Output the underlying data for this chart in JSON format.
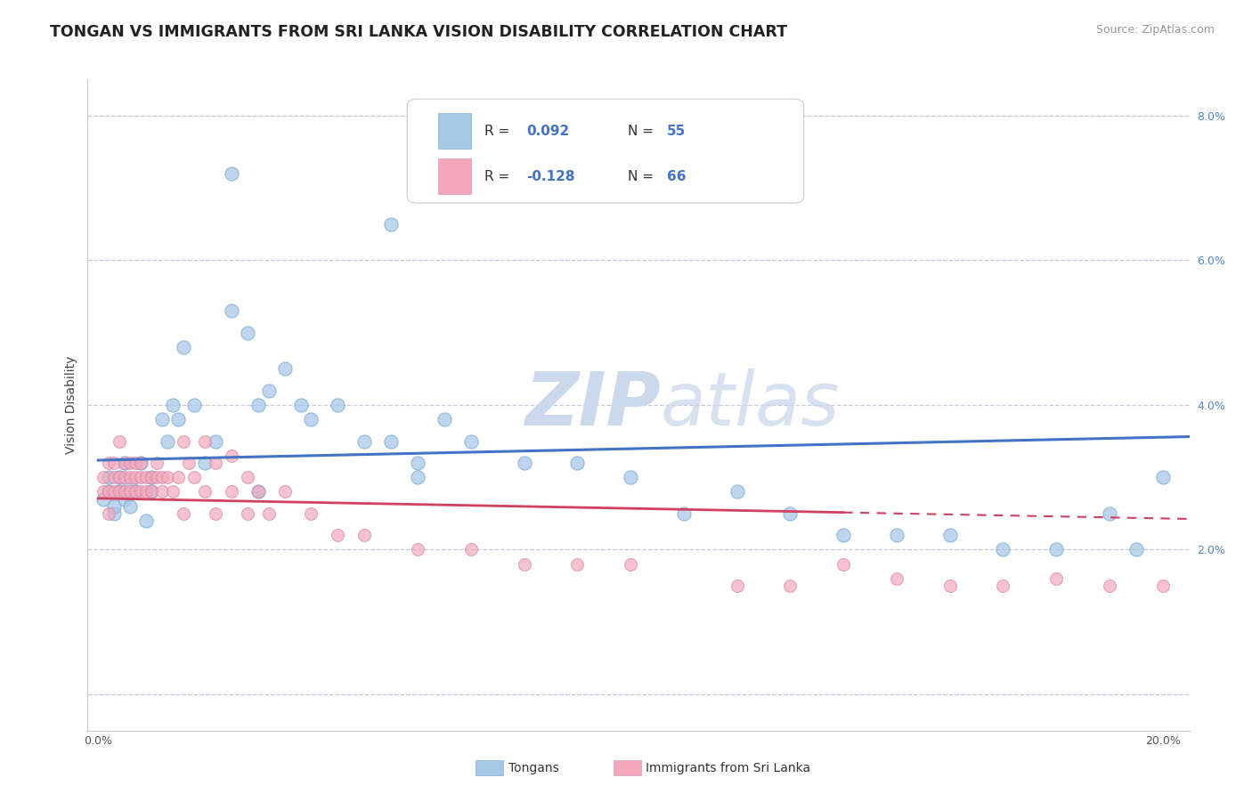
{
  "title": "TONGAN VS IMMIGRANTS FROM SRI LANKA VISION DISABILITY CORRELATION CHART",
  "source_text": "Source: ZipAtlas.com",
  "xlabel": "",
  "ylabel": "Vision Disability",
  "xlim": [
    -0.002,
    0.205
  ],
  "ylim": [
    -0.005,
    0.085
  ],
  "xtick_vals": [
    0.0,
    0.04,
    0.08,
    0.12,
    0.16,
    0.2
  ],
  "xticklabels": [
    "0.0%",
    "",
    "",
    "",
    "",
    "20.0%"
  ],
  "ytick_vals": [
    0.0,
    0.02,
    0.04,
    0.06,
    0.08
  ],
  "yticklabels_right": [
    "",
    "2.0%",
    "4.0%",
    "6.0%",
    "8.0%"
  ],
  "legend_r1": "R = 0.092",
  "legend_n1": "N = 55",
  "legend_r2": "R = -0.128",
  "legend_n2": "N = 66",
  "color_tongan": "#a8c8e8",
  "color_sri_lanka": "#f4a8bc",
  "color_line_tongan": "#4472c4",
  "color_line_sri_lanka": "#d04060",
  "background_color": "#ffffff",
  "watermark_zip": "ZIP",
  "watermark_atlas": "atlas",
  "watermark_color": "#ccd8ec",
  "tongan_x": [
    0.001,
    0.002,
    0.002,
    0.003,
    0.003,
    0.004,
    0.004,
    0.005,
    0.005,
    0.006,
    0.006,
    0.007,
    0.008,
    0.009,
    0.01,
    0.01,
    0.012,
    0.013,
    0.014,
    0.015,
    0.016,
    0.018,
    0.02,
    0.022,
    0.025,
    0.028,
    0.03,
    0.032,
    0.035,
    0.038,
    0.04,
    0.045,
    0.05,
    0.055,
    0.06,
    0.065,
    0.07,
    0.08,
    0.09,
    0.1,
    0.11,
    0.12,
    0.13,
    0.14,
    0.15,
    0.16,
    0.17,
    0.18,
    0.19,
    0.195,
    0.2,
    0.055,
    0.025,
    0.06,
    0.03
  ],
  "tongan_y": [
    0.027,
    0.028,
    0.03,
    0.025,
    0.026,
    0.028,
    0.03,
    0.027,
    0.032,
    0.026,
    0.029,
    0.028,
    0.032,
    0.024,
    0.028,
    0.03,
    0.038,
    0.035,
    0.04,
    0.038,
    0.048,
    0.04,
    0.032,
    0.035,
    0.053,
    0.05,
    0.04,
    0.042,
    0.045,
    0.04,
    0.038,
    0.04,
    0.035,
    0.035,
    0.032,
    0.038,
    0.035,
    0.032,
    0.032,
    0.03,
    0.025,
    0.028,
    0.025,
    0.022,
    0.022,
    0.022,
    0.02,
    0.02,
    0.025,
    0.02,
    0.03,
    0.065,
    0.072,
    0.03,
    0.028
  ],
  "srilanka_x": [
    0.001,
    0.001,
    0.002,
    0.002,
    0.002,
    0.003,
    0.003,
    0.003,
    0.004,
    0.004,
    0.004,
    0.005,
    0.005,
    0.005,
    0.006,
    0.006,
    0.006,
    0.007,
    0.007,
    0.007,
    0.008,
    0.008,
    0.008,
    0.009,
    0.009,
    0.01,
    0.01,
    0.011,
    0.011,
    0.012,
    0.012,
    0.013,
    0.014,
    0.015,
    0.016,
    0.017,
    0.018,
    0.02,
    0.022,
    0.025,
    0.028,
    0.03,
    0.032,
    0.035,
    0.04,
    0.045,
    0.05,
    0.06,
    0.07,
    0.08,
    0.09,
    0.1,
    0.12,
    0.13,
    0.14,
    0.15,
    0.16,
    0.17,
    0.18,
    0.19,
    0.2,
    0.016,
    0.02,
    0.022,
    0.025,
    0.028
  ],
  "srilanka_y": [
    0.03,
    0.028,
    0.032,
    0.028,
    0.025,
    0.03,
    0.032,
    0.028,
    0.03,
    0.035,
    0.028,
    0.032,
    0.03,
    0.028,
    0.032,
    0.03,
    0.028,
    0.03,
    0.032,
    0.028,
    0.032,
    0.03,
    0.028,
    0.03,
    0.028,
    0.03,
    0.028,
    0.032,
    0.03,
    0.03,
    0.028,
    0.03,
    0.028,
    0.03,
    0.025,
    0.032,
    0.03,
    0.028,
    0.025,
    0.028,
    0.025,
    0.028,
    0.025,
    0.028,
    0.025,
    0.022,
    0.022,
    0.02,
    0.02,
    0.018,
    0.018,
    0.018,
    0.015,
    0.015,
    0.018,
    0.016,
    0.015,
    0.015,
    0.016,
    0.015,
    0.015,
    0.035,
    0.035,
    0.032,
    0.033,
    0.03
  ]
}
